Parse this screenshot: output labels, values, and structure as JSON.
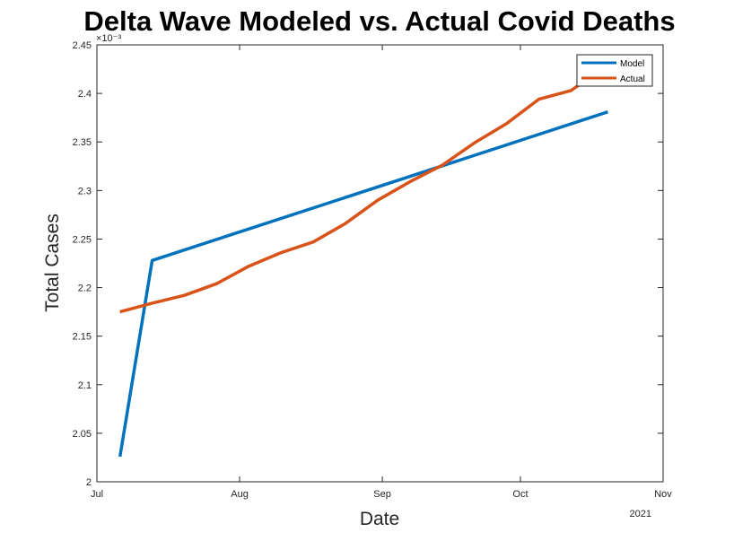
{
  "chart_data": {
    "type": "line",
    "title": "Delta Wave Modeled vs. Actual Covid Deaths",
    "xlabel": "Date",
    "ylabel": "Total Cases",
    "x_axis_year_label": "2021",
    "y_exponent_label": "×10⁻³",
    "xlim": [
      "2021-07-01",
      "2021-11-01"
    ],
    "ylim": [
      2.0,
      2.45
    ],
    "x_ticks": [
      {
        "label": "Jul",
        "date": "2021-07-01"
      },
      {
        "label": "Aug",
        "date": "2021-08-01"
      },
      {
        "label": "Sep",
        "date": "2021-09-01"
      },
      {
        "label": "Oct",
        "date": "2021-10-01"
      },
      {
        "label": "Nov",
        "date": "2021-11-01"
      }
    ],
    "y_ticks": [
      "2",
      "2.05",
      "2.1",
      "2.15",
      "2.2",
      "2.25",
      "2.3",
      "2.35",
      "2.4",
      "2.45"
    ],
    "grid": false,
    "legend_position": "top-right",
    "series": [
      {
        "name": "Model",
        "color": "#0072BD",
        "points": [
          {
            "x": "2021-07-06",
            "y": 2.026
          },
          {
            "x": "2021-07-13",
            "y": 2.228
          },
          {
            "x": "2021-10-20",
            "y": 2.381
          }
        ]
      },
      {
        "name": "Actual",
        "color": "#D95319",
        "points": [
          {
            "x": "2021-07-06",
            "y": 2.175
          },
          {
            "x": "2021-07-13",
            "y": 2.184
          },
          {
            "x": "2021-07-20",
            "y": 2.192
          },
          {
            "x": "2021-07-27",
            "y": 2.204
          },
          {
            "x": "2021-08-03",
            "y": 2.222
          },
          {
            "x": "2021-08-10",
            "y": 2.236
          },
          {
            "x": "2021-08-17",
            "y": 2.247
          },
          {
            "x": "2021-08-24",
            "y": 2.266
          },
          {
            "x": "2021-08-31",
            "y": 2.29
          },
          {
            "x": "2021-09-07",
            "y": 2.309
          },
          {
            "x": "2021-09-14",
            "y": 2.326
          },
          {
            "x": "2021-09-21",
            "y": 2.349
          },
          {
            "x": "2021-09-28",
            "y": 2.369
          },
          {
            "x": "2021-10-05",
            "y": 2.394
          },
          {
            "x": "2021-10-12",
            "y": 2.403
          },
          {
            "x": "2021-10-15",
            "y": 2.413
          }
        ]
      }
    ]
  }
}
